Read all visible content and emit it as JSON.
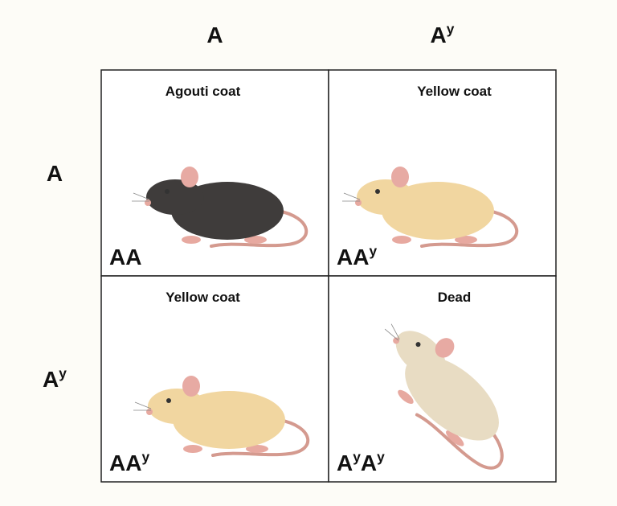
{
  "columns": [
    [
      {
        "text": "A",
        "sup": false
      }
    ],
    [
      {
        "text": "A",
        "sup": false
      },
      {
        "text": "y",
        "sup": true
      }
    ]
  ],
  "rows": [
    [
      {
        "text": "A",
        "sup": false
      }
    ],
    [
      {
        "text": "A",
        "sup": false
      },
      {
        "text": "y",
        "sup": true
      }
    ]
  ],
  "cells": [
    [
      {
        "title": "Agouti coat",
        "genotype": [
          {
            "text": "AA",
            "sup": false
          }
        ]
      },
      {
        "title": "Yellow coat",
        "genotype": [
          {
            "text": "AA",
            "sup": false
          },
          {
            "text": "y",
            "sup": true
          }
        ]
      }
    ],
    [
      {
        "title": "Yellow coat",
        "genotype": [
          {
            "text": "AA",
            "sup": false
          },
          {
            "text": "y",
            "sup": true
          }
        ]
      },
      {
        "title": "Dead",
        "genotype": [
          {
            "text": "A",
            "sup": false
          },
          {
            "text": "y",
            "sup": true
          },
          {
            "text": "A",
            "sup": false
          },
          {
            "text": "y",
            "sup": true
          }
        ]
      }
    ]
  ]
}
